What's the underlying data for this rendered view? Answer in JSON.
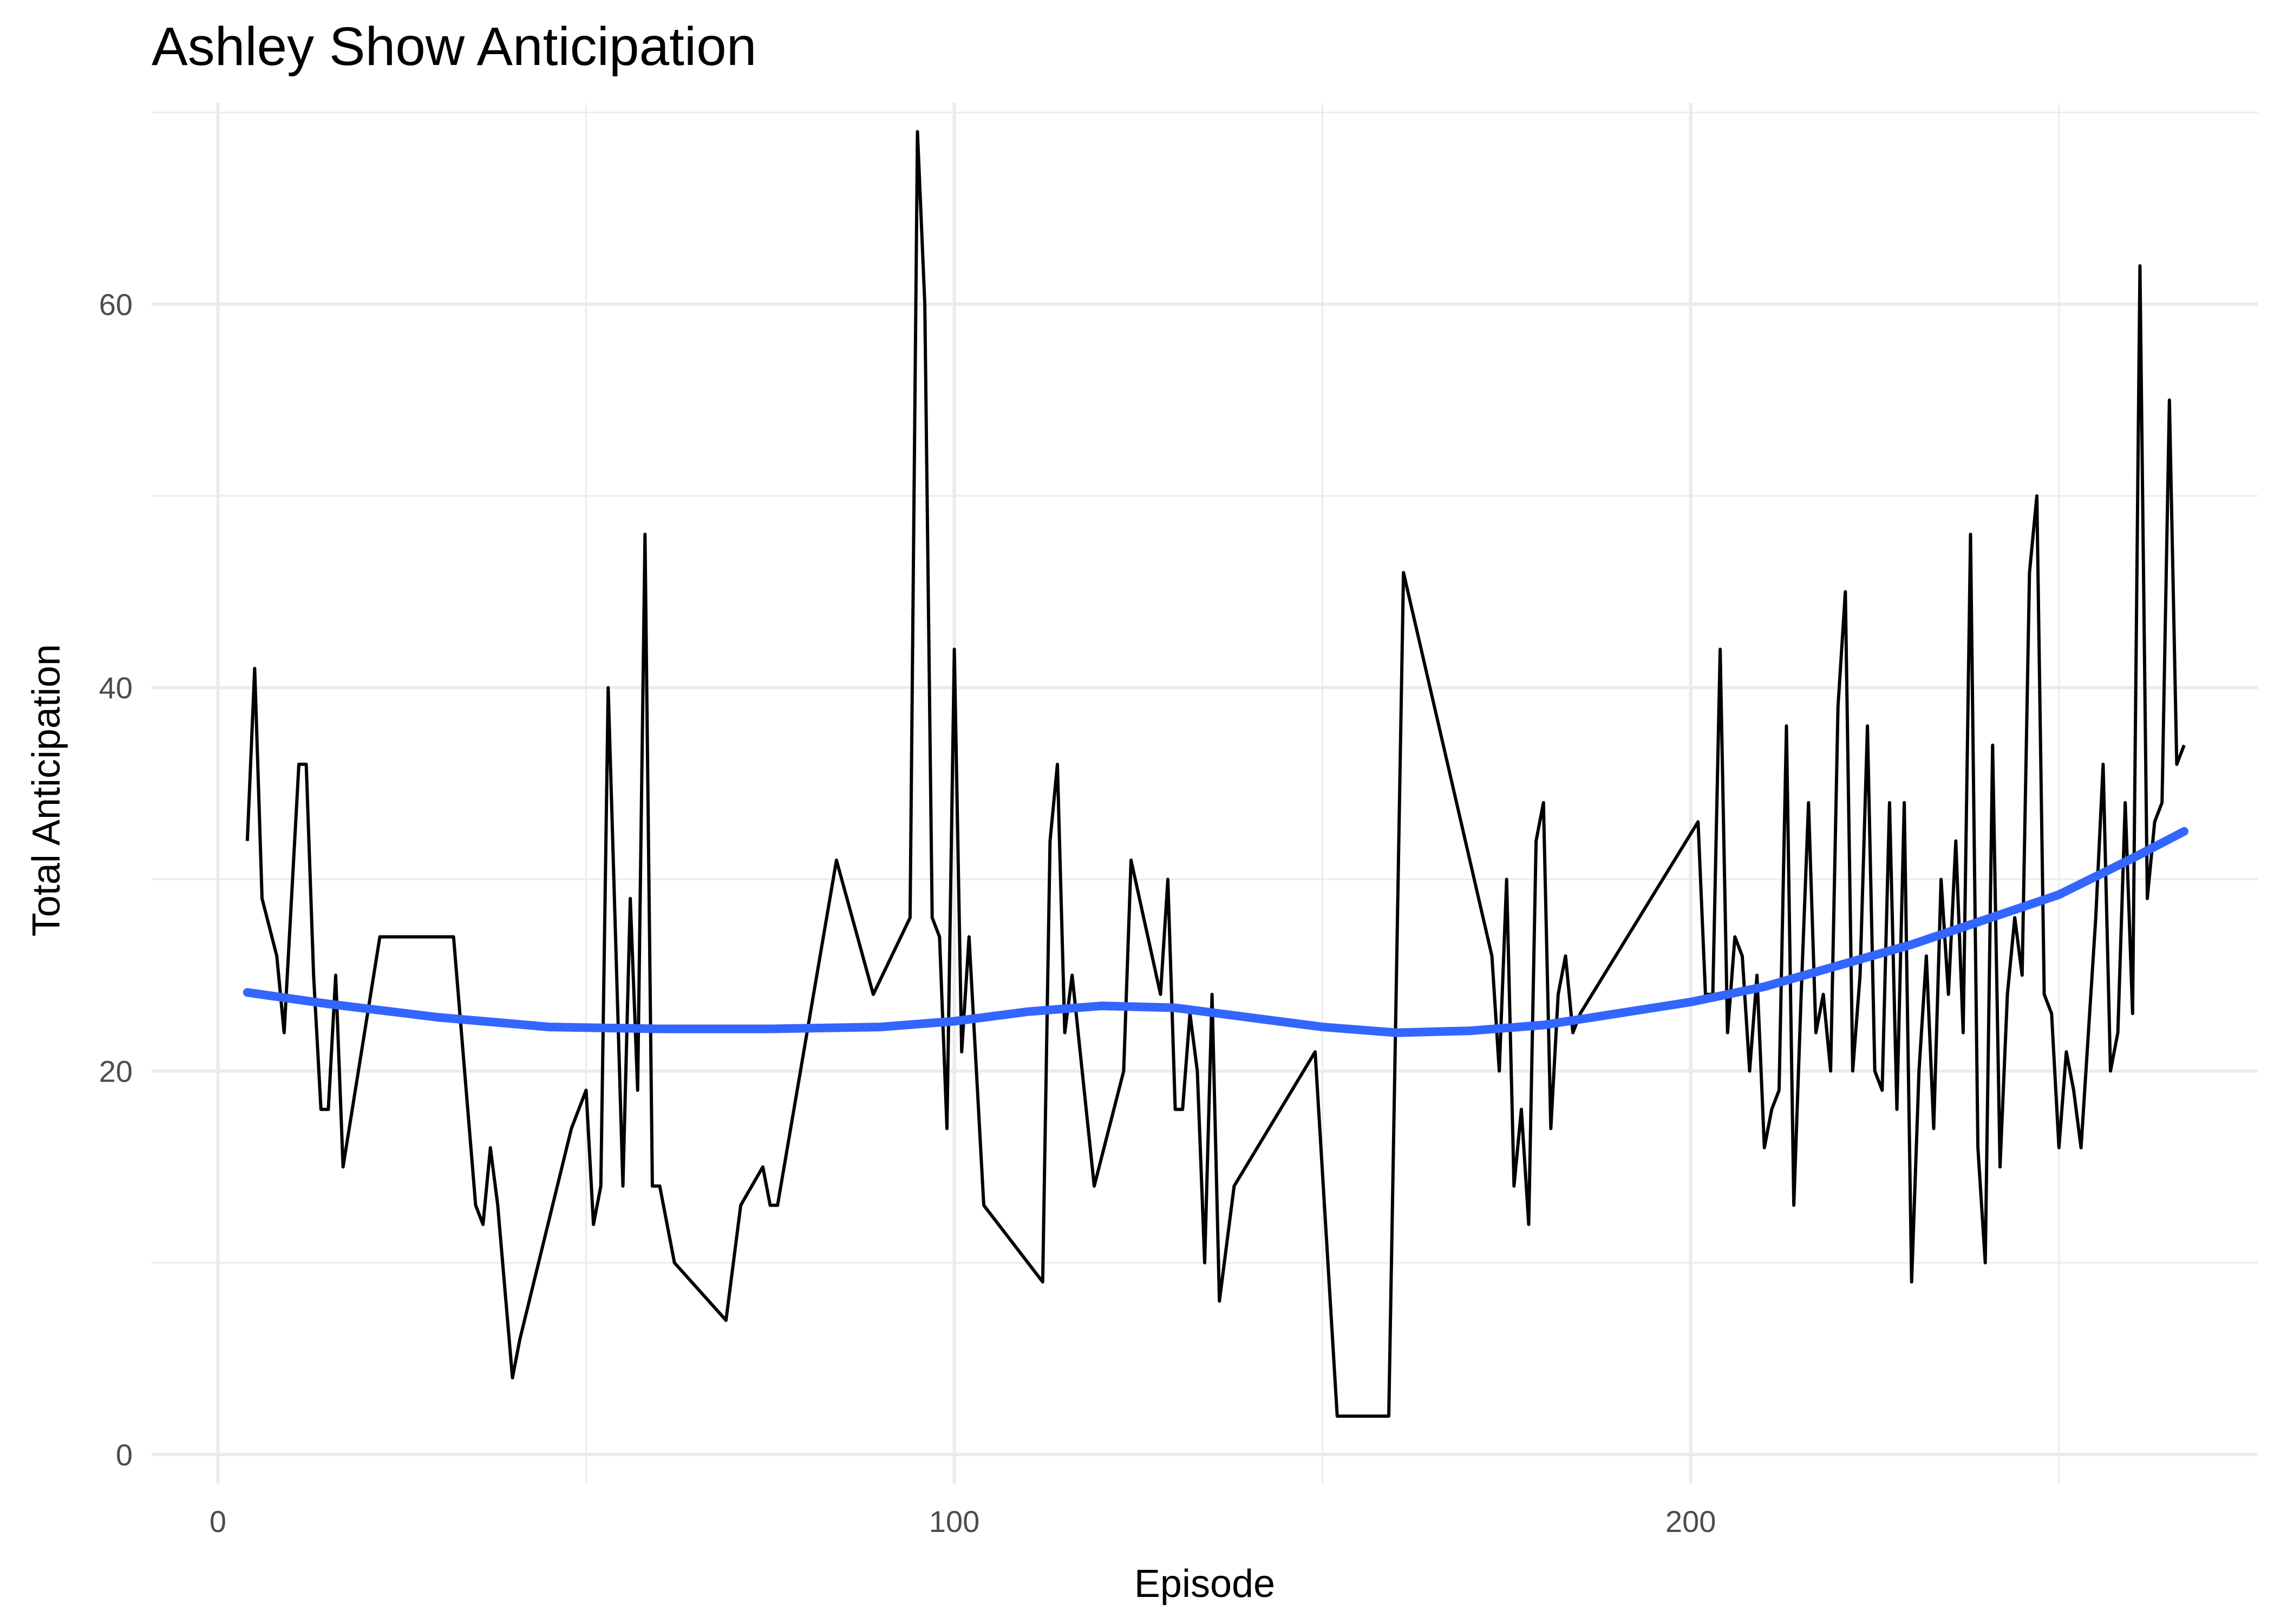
{
  "chart_data": {
    "type": "line",
    "title": "Ashley Show Anticipation",
    "xlabel": "Episode",
    "ylabel": "Total Anticipation",
    "xlim": [
      -9,
      277
    ],
    "ylim": [
      -1.5,
      70.5
    ],
    "x_ticks": [
      0,
      100,
      200
    ],
    "y_ticks": [
      0,
      20,
      40,
      60
    ],
    "x_minor_ticks": [
      50,
      150,
      250
    ],
    "y_minor_ticks": [
      10,
      30,
      50,
      70
    ],
    "grid": true,
    "legend": "none",
    "colors": {
      "series": "#000000",
      "smooth": "#3366ff",
      "grid": "#ebebeb",
      "tick_text": "#4d4d4d"
    },
    "series": [
      {
        "x": [
          4,
          5,
          6,
          8,
          9,
          11,
          12,
          13,
          14,
          15,
          16,
          17,
          22,
          23,
          24,
          32,
          35,
          36,
          37,
          38,
          40,
          41,
          48,
          50,
          51,
          52,
          53,
          55,
          56,
          57,
          58,
          59,
          60,
          62,
          69,
          71,
          74,
          75,
          76,
          84,
          89,
          94,
          95,
          96,
          97,
          98,
          99,
          100,
          101,
          102,
          104,
          112,
          113,
          114,
          115,
          116,
          119,
          123,
          124,
          128,
          129,
          130,
          131,
          132,
          133,
          134,
          135,
          136,
          137,
          138,
          149,
          152,
          155,
          159,
          161,
          173,
          174,
          175,
          176,
          177,
          178,
          179,
          180,
          181,
          182,
          183,
          184,
          185,
          201,
          202,
          203,
          204,
          205,
          206,
          207,
          208,
          209,
          210,
          211,
          212,
          213,
          214,
          215,
          216,
          217,
          218,
          219,
          220,
          221,
          222,
          223,
          224,
          225,
          226,
          227,
          228,
          229,
          230,
          231,
          232,
          233,
          234,
          235,
          236,
          237,
          238,
          239,
          240,
          241,
          242,
          243,
          244,
          245,
          246,
          247,
          248,
          249,
          250,
          251,
          252,
          253,
          254,
          255,
          256,
          257,
          258,
          259,
          260,
          261,
          262,
          263,
          264,
          265,
          266,
          267
        ],
        "y": [
          32,
          41,
          29,
          26,
          22,
          36,
          36,
          25,
          18,
          18,
          25,
          15,
          27,
          27,
          27,
          27,
          13,
          12,
          16,
          13,
          4,
          6,
          17,
          19,
          12,
          14,
          40,
          14,
          29,
          19,
          48,
          14,
          14,
          10,
          7,
          13,
          15,
          13,
          13,
          31,
          24,
          28,
          69,
          60,
          28,
          27,
          17,
          42,
          21,
          27,
          13,
          9,
          32,
          36,
          22,
          25,
          14,
          20,
          31,
          24,
          30,
          18,
          18,
          23,
          20,
          10,
          24,
          8,
          11,
          14,
          21,
          2,
          2,
          2,
          46,
          26,
          20,
          30,
          14,
          18,
          12,
          32,
          34,
          17,
          24,
          26,
          22,
          23,
          33,
          24,
          24,
          42,
          22,
          27,
          26,
          20,
          25,
          16,
          18,
          19,
          38,
          13,
          24,
          34,
          22,
          24,
          20,
          39,
          45,
          20,
          25,
          38,
          20,
          19,
          34,
          18,
          34,
          9,
          20,
          26,
          17,
          30,
          24,
          32,
          22,
          48,
          16,
          10,
          37,
          15,
          24,
          28,
          25,
          46,
          50,
          24,
          23,
          16,
          21,
          19,
          16,
          22,
          28,
          36,
          20,
          22,
          34,
          23,
          62,
          29,
          33,
          34,
          55,
          36,
          37
        ]
      }
    ],
    "smooth": {
      "x": [
        4,
        15,
        30,
        45,
        60,
        75,
        90,
        100,
        110,
        120,
        130,
        140,
        150,
        160,
        170,
        180,
        190,
        200,
        210,
        220,
        230,
        240,
        250,
        260,
        267
      ],
      "y": [
        24.1,
        23.5,
        22.8,
        22.3,
        22.2,
        22.2,
        22.3,
        22.6,
        23.1,
        23.4,
        23.3,
        22.8,
        22.3,
        22.0,
        22.1,
        22.4,
        23.0,
        23.6,
        24.4,
        25.5,
        26.6,
        27.9,
        29.2,
        31.1,
        32.5
      ]
    }
  }
}
